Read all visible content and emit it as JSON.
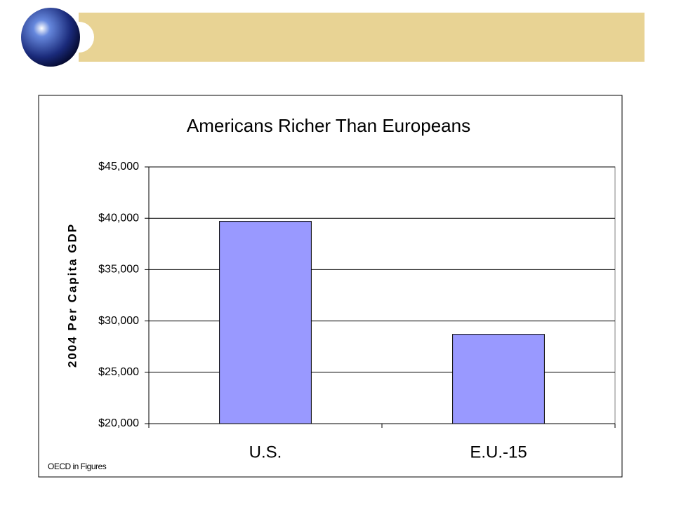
{
  "chart_data": {
    "type": "bar",
    "title": "Americans Richer Than Europeans",
    "y_label": "2004 Per Capita GDP",
    "categories": [
      "U.S.",
      "E.U.-15"
    ],
    "values": [
      39700,
      28700
    ],
    "color": "#9999ff",
    "ylim": [
      20000,
      45000
    ],
    "yticks": [
      {
        "value": 20000,
        "label": "$20,000"
      },
      {
        "value": 25000,
        "label": "$25,000"
      },
      {
        "value": 30000,
        "label": "$30,000"
      },
      {
        "value": 35000,
        "label": "$35,000"
      },
      {
        "value": 40000,
        "label": "$40,000"
      },
      {
        "value": 45000,
        "label": "$45,000"
      }
    ],
    "grid": true,
    "source": "OECD in Figures"
  }
}
